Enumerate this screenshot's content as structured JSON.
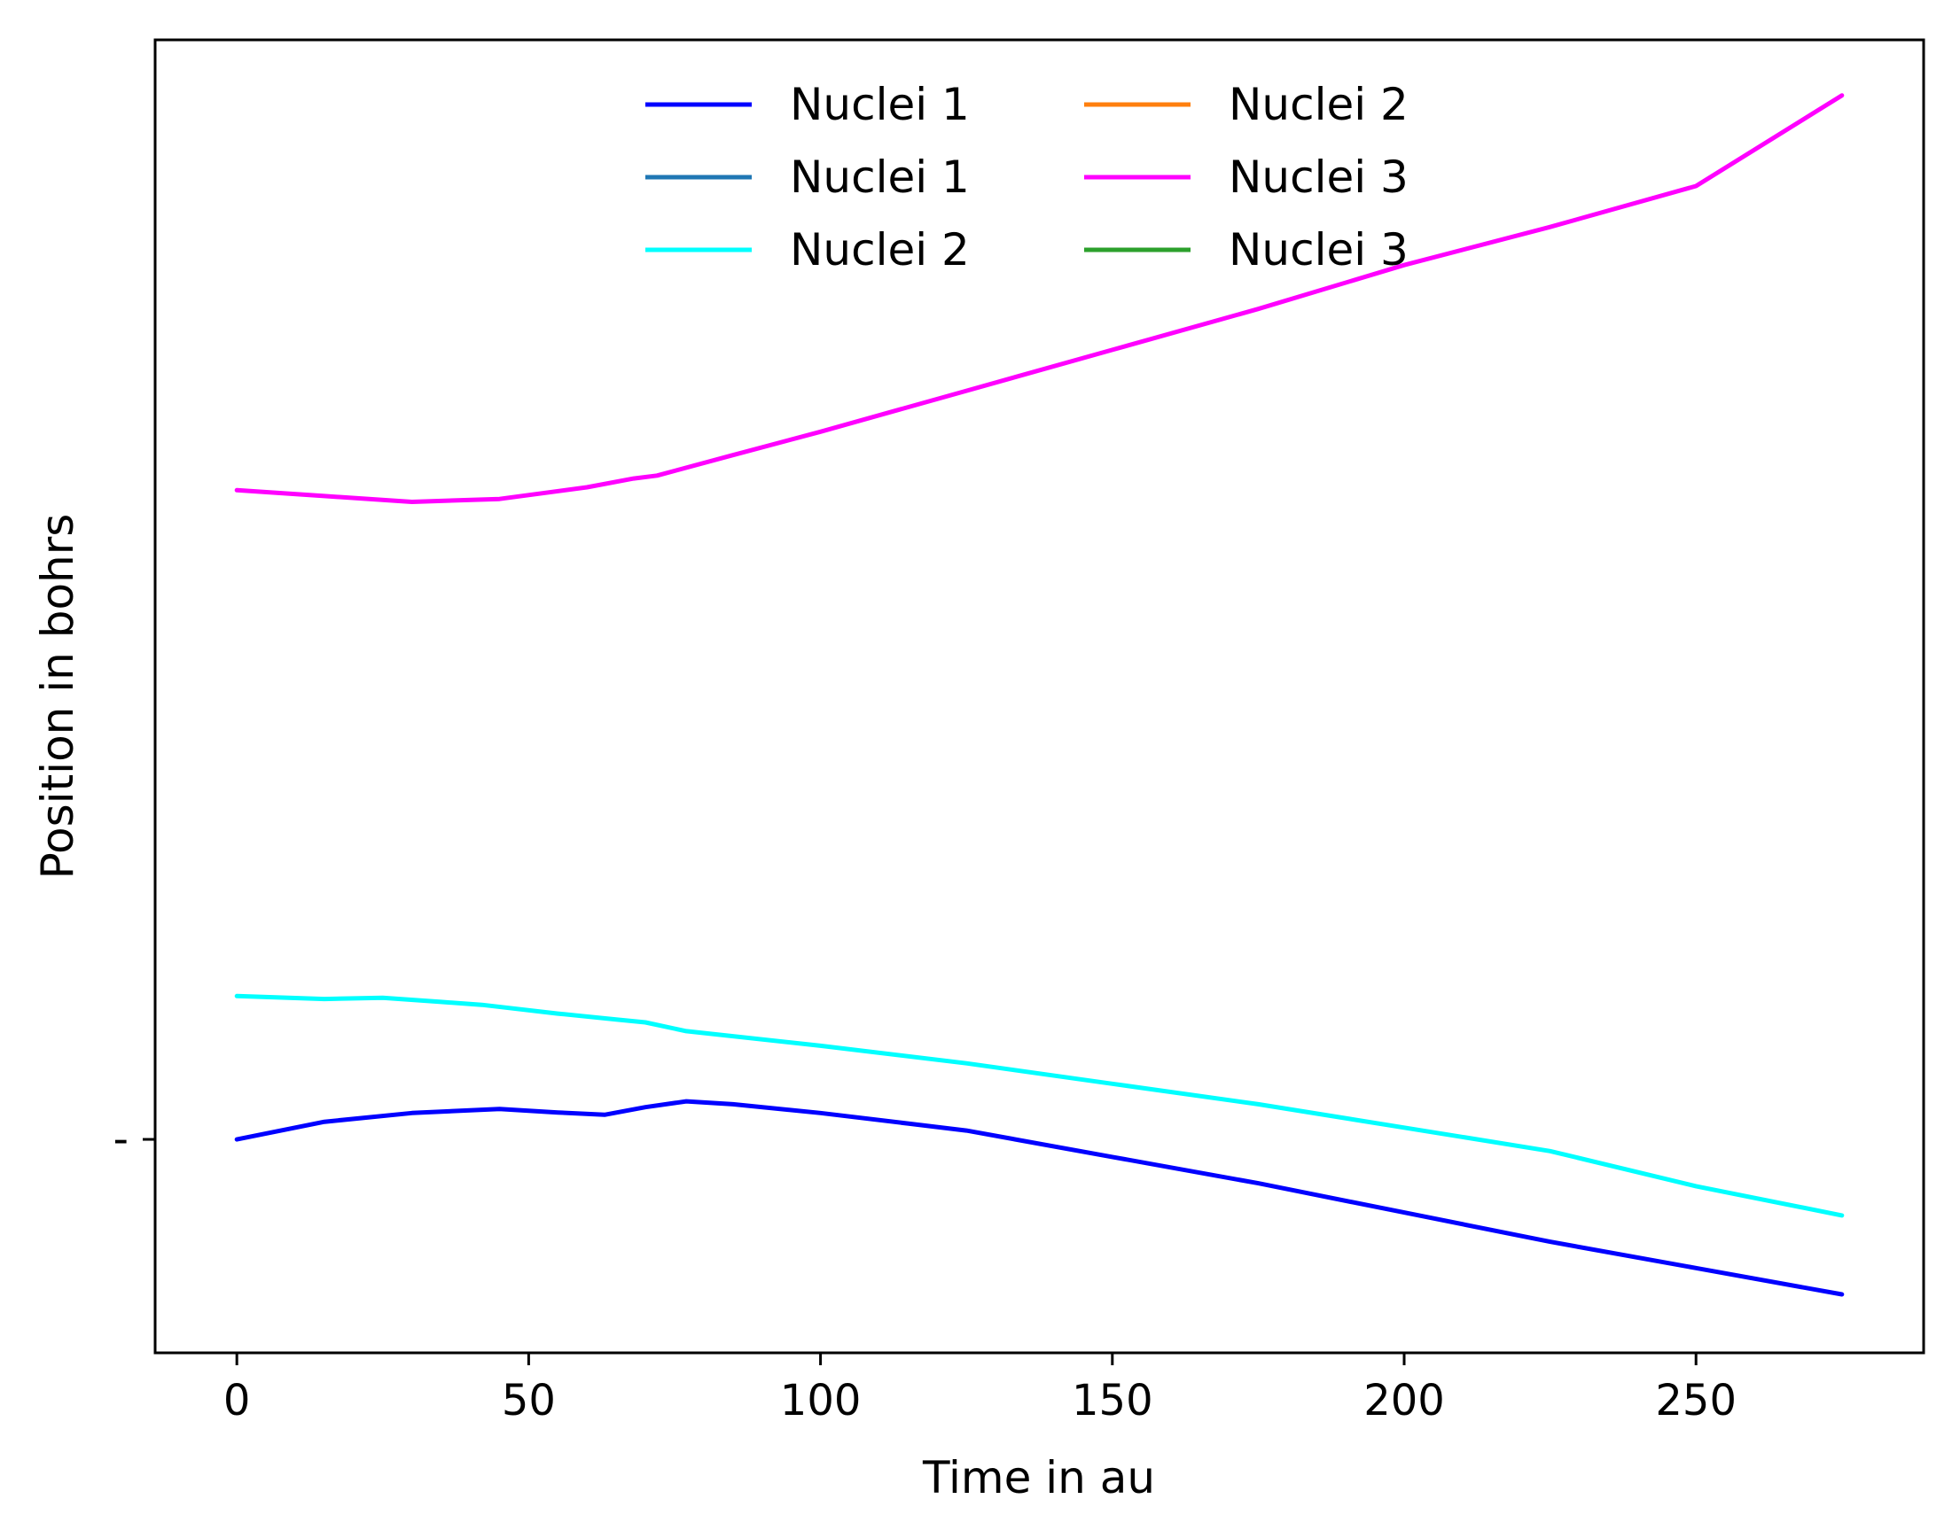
{
  "chart_data": {
    "type": "line",
    "title": "",
    "xlabel": "Time in au",
    "ylabel": "Position in bohrs",
    "xlim": [
      -14,
      289
    ],
    "ylim": [
      -3.65,
      18.8
    ],
    "xticks": [
      0,
      50,
      100,
      150,
      200,
      250
    ],
    "xtick_labels": [
      "0",
      "50",
      "100",
      "150",
      "200",
      "250"
    ],
    "yticks": [
      0
    ],
    "ytick_labels": [
      "-"
    ],
    "grid": false,
    "legend": {
      "placement": "top-center",
      "columns": 2
    },
    "series": [
      {
        "name": "Nuclei 1",
        "color": "#0000ff",
        "x": [
          0,
          15,
          30,
          45,
          55,
          63,
          70,
          77,
          85,
          100,
          125,
          150,
          175,
          200,
          225,
          250,
          275
        ],
        "y": [
          0.0,
          0.3,
          0.45,
          0.52,
          0.46,
          0.42,
          0.55,
          0.65,
          0.6,
          0.45,
          0.15,
          -0.3,
          -0.75,
          -1.25,
          -1.75,
          -2.2,
          -2.65
        ]
      },
      {
        "name": "Nuclei 1",
        "color": "#1f77b4",
        "x": [],
        "y": []
      },
      {
        "name": "Nuclei 2",
        "color": "#00ffff",
        "x": [
          0,
          15,
          25,
          35,
          42,
          55,
          65,
          70,
          77,
          100,
          125,
          150,
          175,
          200,
          225,
          250,
          275
        ],
        "y": [
          2.45,
          2.4,
          2.42,
          2.35,
          2.3,
          2.15,
          2.05,
          2.0,
          1.85,
          1.6,
          1.3,
          0.95,
          0.6,
          0.2,
          -0.2,
          -0.8,
          -1.3
        ]
      },
      {
        "name": "Nuclei 2",
        "color": "#ff7f0e",
        "x": [],
        "y": []
      },
      {
        "name": "Nuclei 3",
        "color": "#ff00ff",
        "x": [
          0,
          15,
          30,
          45,
          60,
          68,
          72,
          85,
          100,
          125,
          150,
          175,
          200,
          225,
          250,
          275
        ],
        "y": [
          11.1,
          11.0,
          10.9,
          10.95,
          11.15,
          11.3,
          11.35,
          11.7,
          12.1,
          12.8,
          13.5,
          14.2,
          14.95,
          15.6,
          16.3,
          17.85
        ]
      },
      {
        "name": "Nuclei 3",
        "color": "#2ca02c",
        "x": [],
        "y": []
      }
    ]
  }
}
